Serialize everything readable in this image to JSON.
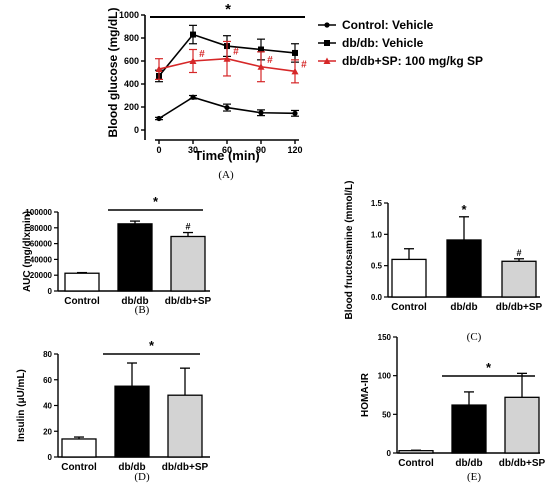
{
  "chart_data": [
    {
      "id": "A",
      "type": "line",
      "panel_label": "(A)",
      "xlabel": "Time (min)",
      "ylabel": "Blood glucose (mg/dL)",
      "x": [
        0,
        30,
        60,
        90,
        120
      ],
      "xticks": [
        "0",
        "30",
        "60",
        "90",
        "120"
      ],
      "yticks": [
        "0",
        "200",
        "400",
        "600",
        "800",
        "1000"
      ],
      "ylim": [
        0,
        1000
      ],
      "series": [
        {
          "name": "Control: Vehicle",
          "color": "#000000",
          "marker": "circle",
          "values": [
            100,
            285,
            195,
            150,
            145
          ],
          "errors": [
            10,
            15,
            30,
            25,
            25
          ]
        },
        {
          "name": "db/db: Vehicle",
          "color": "#000000",
          "marker": "square",
          "values": [
            470,
            830,
            730,
            700,
            670
          ],
          "errors": [
            50,
            80,
            90,
            90,
            80
          ]
        },
        {
          "name": "db/db+SP: 100 mg/kg SP",
          "color": "#d62728",
          "marker": "triangle",
          "values": [
            530,
            600,
            620,
            550,
            510
          ],
          "errors": [
            90,
            100,
            150,
            130,
            100
          ]
        }
      ],
      "significance": {
        "bar_label": "*",
        "markers": [
          "#",
          "#",
          "#",
          "#"
        ]
      }
    },
    {
      "id": "B",
      "type": "bar",
      "panel_label": "(B)",
      "ylabel": "AUC (mg/dlxmin)",
      "categories": [
        "Control",
        "db/db",
        "db/db+SP"
      ],
      "values": [
        22500,
        85000,
        69000
      ],
      "errors": [
        800,
        3500,
        5000
      ],
      "colors": [
        "#ffffff",
        "#000000",
        "#d3d3d3"
      ],
      "yticks": [
        "0",
        "20000",
        "40000",
        "60000",
        "80000",
        "100000"
      ],
      "ylim": [
        0,
        100000
      ],
      "significance": {
        "bar_label": "*",
        "markers": [
          "#"
        ]
      }
    },
    {
      "id": "C",
      "type": "bar",
      "panel_label": "(C)",
      "ylabel": "Blood fructosamine (mmol/L)",
      "categories": [
        "Control",
        "db/db",
        "db/db+SP"
      ],
      "values": [
        0.6,
        0.91,
        0.57
      ],
      "errors": [
        0.17,
        0.37,
        0.04
      ],
      "colors": [
        "#ffffff",
        "#000000",
        "#d3d3d3"
      ],
      "yticks": [
        "0.0",
        "0.5",
        "1.0",
        "1.5"
      ],
      "ylim": [
        0,
        1.5
      ],
      "significance": {
        "markers": [
          "*",
          "#"
        ]
      }
    },
    {
      "id": "D",
      "type": "bar",
      "panel_label": "(D)",
      "ylabel": "Insulin (μU/mL)",
      "categories": [
        "Control",
        "db/db",
        "db/db+SP"
      ],
      "values": [
        14,
        55,
        48
      ],
      "errors": [
        1.5,
        18,
        21
      ],
      "colors": [
        "#ffffff",
        "#000000",
        "#d3d3d3"
      ],
      "yticks": [
        "0",
        "20",
        "40",
        "60",
        "80"
      ],
      "ylim": [
        0,
        80
      ],
      "significance": {
        "bar_label": "*"
      }
    },
    {
      "id": "E",
      "type": "bar",
      "panel_label": "(E)",
      "ylabel": "HOMA-IR",
      "categories": [
        "Control",
        "db/db",
        "db/db+SP"
      ],
      "values": [
        3,
        62,
        72
      ],
      "errors": [
        0.6,
        17,
        31
      ],
      "colors": [
        "#ffffff",
        "#000000",
        "#d3d3d3"
      ],
      "yticks": [
        "0",
        "50",
        "100",
        "150"
      ],
      "ylim": [
        0,
        150
      ],
      "significance": {
        "bar_label": "*"
      }
    }
  ]
}
